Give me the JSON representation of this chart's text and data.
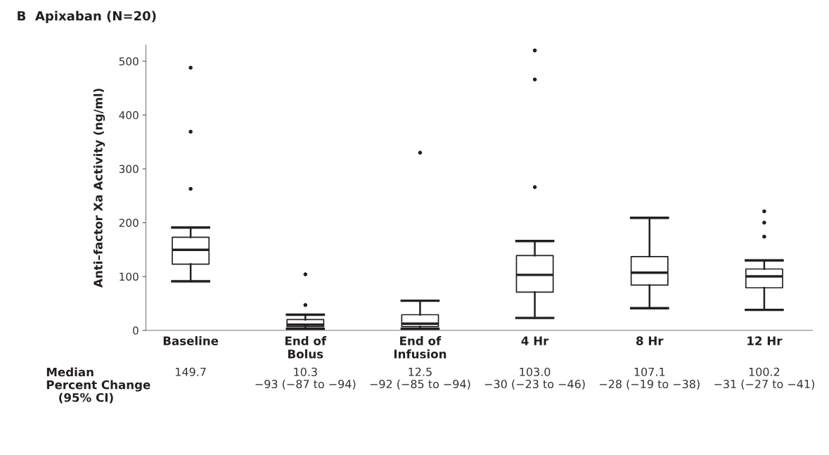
{
  "chart_data": {
    "type": "box",
    "title": "B  Apixaban (N=20)",
    "ylabel": "Anti–factor Xa Activity (ng/ml)",
    "categories": [
      "Baseline",
      "End of\nBolus",
      "End of\nInfusion",
      "4 Hr",
      "8 Hr",
      "12 Hr"
    ],
    "boxes": [
      {
        "low": 91,
        "q1": 123,
        "median": 149.7,
        "q3": 173,
        "high": 191,
        "outliers": [
          263,
          369,
          488
        ]
      },
      {
        "low": 3,
        "q1": 7,
        "median": 10.3,
        "q3": 20,
        "high": 29,
        "outliers": [
          47,
          104
        ]
      },
      {
        "low": 3,
        "q1": 7,
        "median": 12.5,
        "q3": 29,
        "high": 55,
        "outliers": [
          330
        ]
      },
      {
        "low": 23,
        "q1": 71,
        "median": 103.0,
        "q3": 139,
        "high": 166,
        "outliers": [
          266,
          466,
          520
        ]
      },
      {
        "low": 41,
        "q1": 84,
        "median": 107.1,
        "q3": 137,
        "high": 209
      },
      {
        "low": 38,
        "q1": 79,
        "median": 100.2,
        "q3": 114,
        "high": 130,
        "outliers": [
          174,
          200,
          221
        ]
      }
    ],
    "ylim": [
      0,
      530
    ],
    "yticks": [
      0,
      100,
      200,
      300,
      400,
      500
    ],
    "grid": false,
    "color": "#231f20",
    "annotations": [
      "Median\nPercent Change\n   (95% CI)",
      "149.7",
      "10.3\n−93 (−87 to −94)",
      "12.5\n−92 (−85 to −94)",
      "103.0\n−30 (−23 to −46)",
      "107.1\n−28 (−19 to −38)",
      "100.2\n−31 (−27 to −41)"
    ]
  }
}
